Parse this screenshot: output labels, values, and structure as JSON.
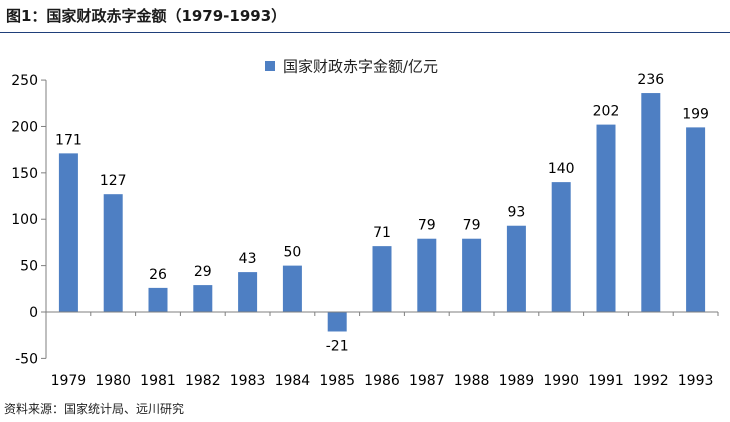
{
  "figure": {
    "title": "图1：国家财政赤字金额（1979-1993）",
    "source": "资料来源：国家统计局、远川研究"
  },
  "colors": {
    "bar": "#4e7fc3",
    "axis": "#7f7f7f",
    "header_rule": "#1f3f7a",
    "text": "#000000"
  },
  "chart_data": {
    "type": "bar",
    "title": "",
    "legend": {
      "label": "国家财政赤字金额/亿元",
      "position": "top-center"
    },
    "xlabel": "",
    "ylabel": "",
    "categories": [
      "1979",
      "1980",
      "1981",
      "1982",
      "1983",
      "1984",
      "1985",
      "1986",
      "1987",
      "1988",
      "1989",
      "1990",
      "1991",
      "1992",
      "1993"
    ],
    "series": [
      {
        "name": "国家财政赤字金额/亿元",
        "values": [
          171,
          127,
          26,
          29,
          43,
          50,
          -21,
          71,
          79,
          79,
          93,
          140,
          202,
          236,
          199
        ]
      }
    ],
    "ylim": [
      -50,
      250
    ],
    "yticks": [
      -50,
      0,
      50,
      100,
      150,
      200,
      250
    ],
    "grid": false,
    "data_labels": true
  }
}
